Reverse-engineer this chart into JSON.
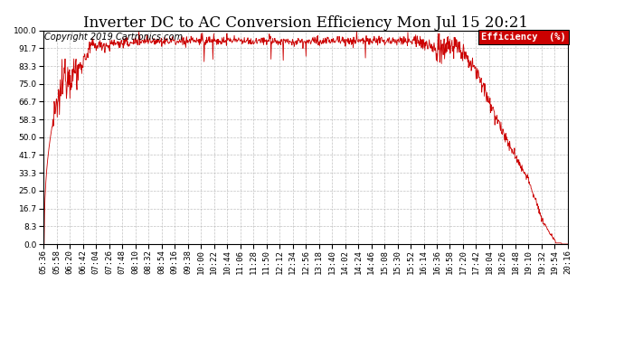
{
  "title": "Inverter DC to AC Conversion Efficiency Mon Jul 15 20:21",
  "copyright": "Copyright 2019 Cartronics.com",
  "legend_label": "Efficiency  (%)",
  "legend_bg": "#cc0000",
  "legend_fg": "#ffffff",
  "line_color": "#cc0000",
  "bg_color": "#ffffff",
  "plot_bg_color": "#ffffff",
  "grid_color": "#bbbbbb",
  "ylim": [
    0.0,
    100.0
  ],
  "yticks": [
    0.0,
    8.3,
    16.7,
    25.0,
    33.3,
    41.7,
    50.0,
    58.3,
    66.7,
    75.0,
    83.3,
    91.7,
    100.0
  ],
  "xtick_labels": [
    "05:36",
    "05:58",
    "06:20",
    "06:42",
    "07:04",
    "07:26",
    "07:48",
    "08:10",
    "08:32",
    "08:54",
    "09:16",
    "09:38",
    "10:00",
    "10:22",
    "10:44",
    "11:06",
    "11:28",
    "11:50",
    "12:12",
    "12:34",
    "12:56",
    "13:18",
    "13:40",
    "14:02",
    "14:24",
    "14:46",
    "15:08",
    "15:30",
    "15:52",
    "16:14",
    "16:36",
    "16:58",
    "17:20",
    "17:42",
    "18:04",
    "18:26",
    "18:48",
    "19:10",
    "19:32",
    "19:54",
    "20:16"
  ],
  "title_fontsize": 12,
  "tick_fontsize": 6.5,
  "copyright_fontsize": 7,
  "legend_fontsize": 7.5
}
